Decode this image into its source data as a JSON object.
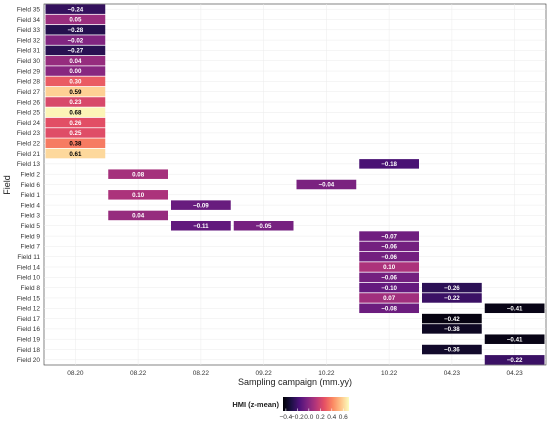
{
  "chart_data": {
    "type": "heatmap",
    "title": "",
    "xlabel": "Sampling campaign (mm.yy)",
    "ylabel": "Field",
    "x_categories": [
      "08.20",
      "08.22",
      "08.22",
      "09.22",
      "10.22",
      "10.22",
      "04.23",
      "04.23"
    ],
    "y_categories": [
      "Field 35",
      "Field 34",
      "Field 33",
      "Field 32",
      "Field 31",
      "Field 30",
      "Field 29",
      "Field 28",
      "Field 27",
      "Field 26",
      "Field 25",
      "Field 24",
      "Field 23",
      "Field 22",
      "Field 21",
      "Field 13",
      "Field 2",
      "Field 6",
      "Field 1",
      "Field 4",
      "Field 3",
      "Field 5",
      "Field 9",
      "Field 7",
      "Field 11",
      "Field 14",
      "Field 10",
      "Field 8",
      "Field 15",
      "Field 12",
      "Field 17",
      "Field 16",
      "Field 19",
      "Field 18",
      "Field 20"
    ],
    "cells": [
      {
        "row": 0,
        "col": 0,
        "value": -0.24,
        "label": "−0.24"
      },
      {
        "row": 1,
        "col": 0,
        "value": 0.05,
        "label": "0.05"
      },
      {
        "row": 2,
        "col": 0,
        "value": -0.28,
        "label": "−0.28"
      },
      {
        "row": 3,
        "col": 0,
        "value": -0.02,
        "label": "−0.02"
      },
      {
        "row": 4,
        "col": 0,
        "value": -0.27,
        "label": "−0.27"
      },
      {
        "row": 5,
        "col": 0,
        "value": 0.04,
        "label": "0.04"
      },
      {
        "row": 6,
        "col": 0,
        "value": 0.0,
        "label": "0.00"
      },
      {
        "row": 7,
        "col": 0,
        "value": 0.3,
        "label": "0.30"
      },
      {
        "row": 8,
        "col": 0,
        "value": 0.59,
        "label": "0.59"
      },
      {
        "row": 9,
        "col": 0,
        "value": 0.23,
        "label": "0.23"
      },
      {
        "row": 10,
        "col": 0,
        "value": 0.68,
        "label": "0.68"
      },
      {
        "row": 11,
        "col": 0,
        "value": 0.26,
        "label": "0.26"
      },
      {
        "row": 12,
        "col": 0,
        "value": 0.25,
        "label": "0.25"
      },
      {
        "row": 13,
        "col": 0,
        "value": 0.38,
        "label": "0.38"
      },
      {
        "row": 14,
        "col": 0,
        "value": 0.61,
        "label": "0.61"
      },
      {
        "row": 15,
        "col": 5,
        "value": -0.18,
        "label": "−0.18"
      },
      {
        "row": 16,
        "col": 1,
        "value": 0.08,
        "label": "0.08"
      },
      {
        "row": 17,
        "col": 4,
        "value": -0.04,
        "label": "−0.04"
      },
      {
        "row": 18,
        "col": 1,
        "value": 0.1,
        "label": "0.10"
      },
      {
        "row": 19,
        "col": 2,
        "value": -0.09,
        "label": "−0.09"
      },
      {
        "row": 20,
        "col": 1,
        "value": 0.04,
        "label": "0.04"
      },
      {
        "row": 21,
        "col": 2,
        "value": -0.11,
        "label": "−0.11"
      },
      {
        "row": 21,
        "col": 3,
        "value": -0.05,
        "label": "−0.05"
      },
      {
        "row": 22,
        "col": 5,
        "value": -0.07,
        "label": "−0.07"
      },
      {
        "row": 23,
        "col": 5,
        "value": -0.06,
        "label": "−0.06"
      },
      {
        "row": 24,
        "col": 5,
        "value": -0.06,
        "label": "−0.06"
      },
      {
        "row": 25,
        "col": 5,
        "value": 0.1,
        "label": "0.10"
      },
      {
        "row": 26,
        "col": 5,
        "value": -0.06,
        "label": "−0.06"
      },
      {
        "row": 27,
        "col": 5,
        "value": -0.1,
        "label": "−0.10"
      },
      {
        "row": 27,
        "col": 6,
        "value": -0.26,
        "label": "−0.26"
      },
      {
        "row": 28,
        "col": 5,
        "value": 0.07,
        "label": "0.07"
      },
      {
        "row": 28,
        "col": 6,
        "value": -0.22,
        "label": "−0.22"
      },
      {
        "row": 29,
        "col": 5,
        "value": -0.08,
        "label": "−0.08"
      },
      {
        "row": 29,
        "col": 7,
        "value": -0.41,
        "label": "−0.41"
      },
      {
        "row": 30,
        "col": 6,
        "value": -0.42,
        "label": "−0.42"
      },
      {
        "row": 31,
        "col": 6,
        "value": -0.38,
        "label": "−0.38"
      },
      {
        "row": 32,
        "col": 7,
        "value": -0.41,
        "label": "−0.41"
      },
      {
        "row": 33,
        "col": 6,
        "value": -0.36,
        "label": "−0.36"
      },
      {
        "row": 34,
        "col": 7,
        "value": -0.22,
        "label": "−0.22"
      }
    ],
    "colorscale": "magma",
    "color_range": [
      -0.45,
      0.7
    ],
    "legend": {
      "title": "HMI (z-mean)",
      "ticks": [
        "−0.4",
        "−0.2",
        "0.0",
        "0.2",
        "0.4",
        "0.6"
      ],
      "tick_values": [
        -0.4,
        -0.2,
        0.0,
        0.2,
        0.4,
        0.6
      ],
      "position": "bottom"
    },
    "grid": true
  }
}
